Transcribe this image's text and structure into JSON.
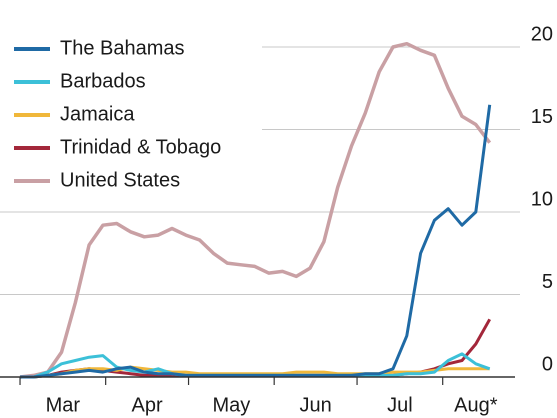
{
  "chart_data": {
    "type": "line",
    "x": [
      0,
      5,
      10,
      15,
      20,
      25,
      30,
      35,
      40,
      45,
      50,
      55,
      60,
      65,
      70,
      75,
      80,
      85,
      90,
      95,
      100,
      105,
      110,
      115,
      120,
      125,
      130,
      135,
      140,
      145,
      150,
      155,
      160,
      165,
      170
    ],
    "xlim": [
      -2,
      177
    ],
    "xticks": [
      0,
      31,
      61,
      92,
      122,
      153
    ],
    "categories": [
      "Mar",
      "Apr",
      "May",
      "Jun",
      "Jul",
      "Aug*"
    ],
    "ylim": [
      0,
      20
    ],
    "yticks": [
      0,
      5,
      10,
      15,
      20
    ],
    "grid": true,
    "legend": "top-left",
    "series": [
      {
        "name": "The Bahamas",
        "color": "#1f6aa5",
        "values": [
          0,
          0,
          0.1,
          0.2,
          0.3,
          0.4,
          0.3,
          0.5,
          0.6,
          0.3,
          0.2,
          0.2,
          0.1,
          0.1,
          0.1,
          0.1,
          0.1,
          0.1,
          0.1,
          0.1,
          0.1,
          0.1,
          0.1,
          0.1,
          0.1,
          0.2,
          0.2,
          0.5,
          2.5,
          7.5,
          9.5,
          10.2,
          9.2,
          10,
          16.5
        ]
      },
      {
        "name": "Barbados",
        "color": "#3cc0d8",
        "values": [
          0,
          0,
          0.3,
          0.8,
          1,
          1.2,
          1.3,
          0.6,
          0.4,
          0.3,
          0.5,
          0.2,
          0.1,
          0.1,
          0.1,
          0.1,
          0.1,
          0.1,
          0.1,
          0.1,
          0.1,
          0.1,
          0.1,
          0.1,
          0.1,
          0.1,
          0.1,
          0.1,
          0.2,
          0.2,
          0.3,
          1,
          1.4,
          0.8,
          0.5
        ]
      },
      {
        "name": "Jamaica",
        "color": "#f0b73a",
        "values": [
          0,
          0,
          0.1,
          0.2,
          0.4,
          0.5,
          0.5,
          0.4,
          0.6,
          0.5,
          0.4,
          0.3,
          0.3,
          0.2,
          0.2,
          0.2,
          0.2,
          0.2,
          0.2,
          0.2,
          0.3,
          0.3,
          0.3,
          0.2,
          0.2,
          0.2,
          0.2,
          0.3,
          0.3,
          0.3,
          0.4,
          0.5,
          0.5,
          0.5,
          0.5
        ]
      },
      {
        "name": "Trinidad & Tobago",
        "color": "#a3273a",
        "values": [
          0,
          0,
          0.1,
          0.3,
          0.4,
          0.5,
          0.4,
          0.3,
          0.2,
          0.1,
          0.1,
          0.1,
          0.1,
          0.1,
          0.1,
          0.1,
          0.1,
          0.1,
          0.1,
          0.1,
          0.1,
          0.1,
          0.1,
          0.1,
          0.1,
          0.1,
          0.1,
          0.1,
          0.2,
          0.3,
          0.5,
          0.8,
          1,
          2,
          3.5
        ]
      },
      {
        "name": "United States",
        "color": "#c9a0a4",
        "values": [
          0,
          0.1,
          0.3,
          1.5,
          4.5,
          8,
          9.2,
          9.3,
          8.8,
          8.5,
          8.6,
          9,
          8.6,
          8.3,
          7.5,
          6.9,
          6.8,
          6.7,
          6.3,
          6.4,
          6.1,
          6.6,
          8.2,
          11.5,
          14,
          16,
          18.5,
          20,
          20.2,
          19.8,
          19.5,
          17.5,
          15.8,
          15.3,
          14.2
        ]
      }
    ]
  }
}
